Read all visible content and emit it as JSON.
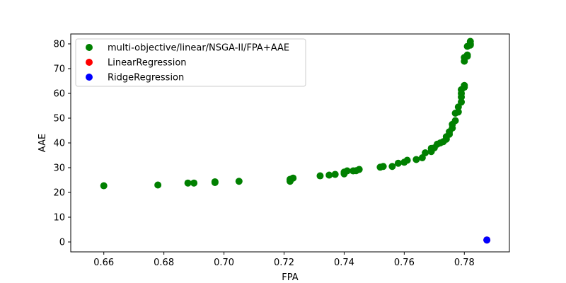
{
  "chart_data": {
    "type": "scatter",
    "title": "",
    "xlabel": "FPA",
    "ylabel": "AAE",
    "xlim": [
      0.649,
      0.795
    ],
    "ylim": [
      -4,
      84
    ],
    "xticks": [
      0.66,
      0.68,
      0.7,
      0.72,
      0.74,
      0.76,
      0.78
    ],
    "xtick_labels": [
      "0.66",
      "0.68",
      "0.70",
      "0.72",
      "0.74",
      "0.76",
      "0.78"
    ],
    "yticks": [
      0,
      10,
      20,
      30,
      40,
      50,
      60,
      70,
      80
    ],
    "ytick_labels": [
      "0",
      "10",
      "20",
      "30",
      "40",
      "50",
      "60",
      "70",
      "80"
    ],
    "grid": false,
    "legend_position": "top-left",
    "series": [
      {
        "name": "multi-objective/linear/NSGA-II/FPA+AAE",
        "color": "#008000",
        "points": [
          [
            0.66,
            22.7
          ],
          [
            0.678,
            23.0
          ],
          [
            0.688,
            23.8
          ],
          [
            0.69,
            23.8
          ],
          [
            0.697,
            24.0
          ],
          [
            0.697,
            24.3
          ],
          [
            0.705,
            24.5
          ],
          [
            0.722,
            24.5
          ],
          [
            0.722,
            25.3
          ],
          [
            0.723,
            25.8
          ],
          [
            0.732,
            26.7
          ],
          [
            0.735,
            27.0
          ],
          [
            0.737,
            27.3
          ],
          [
            0.74,
            27.5
          ],
          [
            0.74,
            28.2
          ],
          [
            0.741,
            28.7
          ],
          [
            0.743,
            28.7
          ],
          [
            0.744,
            28.8
          ],
          [
            0.745,
            29.3
          ],
          [
            0.752,
            30.2
          ],
          [
            0.753,
            30.5
          ],
          [
            0.756,
            30.5
          ],
          [
            0.758,
            31.8
          ],
          [
            0.76,
            32.2
          ],
          [
            0.761,
            33.0
          ],
          [
            0.764,
            33.3
          ],
          [
            0.766,
            34.0
          ],
          [
            0.767,
            36.0
          ],
          [
            0.769,
            36.5
          ],
          [
            0.769,
            37.8
          ],
          [
            0.77,
            38.0
          ],
          [
            0.771,
            39.5
          ],
          [
            0.772,
            40.0
          ],
          [
            0.773,
            40.5
          ],
          [
            0.774,
            41.5
          ],
          [
            0.774,
            42.5
          ],
          [
            0.775,
            43.5
          ],
          [
            0.775,
            44.5
          ],
          [
            0.776,
            46.0
          ],
          [
            0.776,
            47.5
          ],
          [
            0.777,
            49.0
          ],
          [
            0.777,
            52.0
          ],
          [
            0.778,
            52.5
          ],
          [
            0.778,
            54.5
          ],
          [
            0.779,
            56.5
          ],
          [
            0.779,
            58.5
          ],
          [
            0.779,
            60.0
          ],
          [
            0.779,
            61.5
          ],
          [
            0.78,
            62.5
          ],
          [
            0.78,
            63.2
          ],
          [
            0.78,
            73.0
          ],
          [
            0.78,
            74.5
          ],
          [
            0.781,
            75.0
          ],
          [
            0.781,
            75.5
          ],
          [
            0.781,
            79.0
          ],
          [
            0.782,
            79.5
          ],
          [
            0.782,
            80.0
          ],
          [
            0.782,
            81.0
          ]
        ]
      },
      {
        "name": "LinearRegression",
        "color": "#ff0000",
        "points": [
          [
            0.7875,
            0.8
          ]
        ]
      },
      {
        "name": "RidgeRegression",
        "color": "#0000ff",
        "points": [
          [
            0.7875,
            0.8
          ]
        ]
      }
    ]
  }
}
